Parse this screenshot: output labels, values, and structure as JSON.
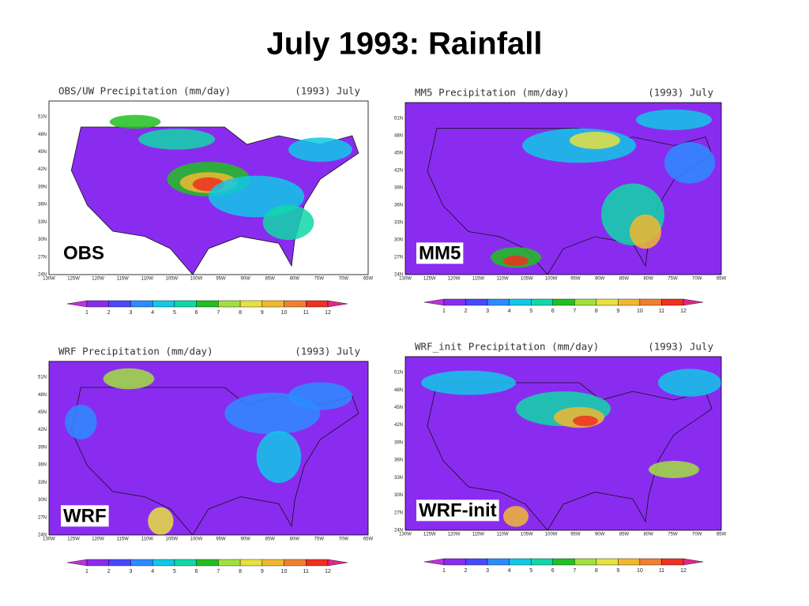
{
  "title": "July 1993: Rainfall",
  "latitudes": [
    "51N",
    "48N",
    "45N",
    "42N",
    "39N",
    "36N",
    "33N",
    "30N",
    "27N",
    "24N"
  ],
  "longitudes": [
    "130W",
    "125W",
    "120W",
    "115W",
    "110W",
    "105W",
    "100W",
    "95W",
    "90W",
    "85W",
    "80W",
    "75W",
    "70W",
    "65W"
  ],
  "colorbar_levels": [
    1,
    2,
    3,
    4,
    5,
    6,
    7,
    8,
    9,
    10,
    11,
    12
  ],
  "panels": [
    {
      "header": "OBS/UW Precipitation (mm/day)",
      "period": "(1993) July",
      "label": "OBS"
    },
    {
      "header": "MM5 Precipitation (mm/day)",
      "period": "(1993) July",
      "label": "MM5"
    },
    {
      "header": "WRF Precipitation (mm/day)",
      "period": "(1993) July",
      "label": "WRF"
    },
    {
      "header": "WRF_init Precipitation (mm/day)",
      "period": "(1993) July",
      "label": "WRF-init"
    }
  ]
}
